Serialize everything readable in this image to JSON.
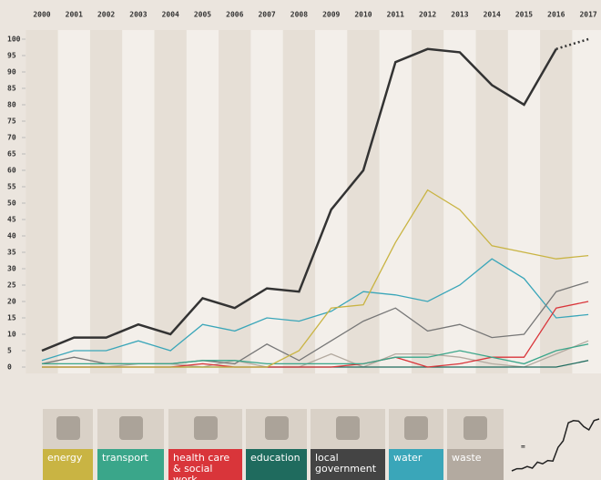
{
  "chart_data": {
    "type": "line",
    "categories": [
      "2000",
      "2001",
      "2002",
      "2003",
      "2004",
      "2005",
      "2006",
      "2007",
      "2008",
      "2009",
      "2010",
      "2011",
      "2012",
      "2013",
      "2014",
      "2015",
      "2016",
      "2017"
    ],
    "ylim": [
      0,
      100
    ],
    "yticks": [
      0,
      5,
      10,
      15,
      20,
      25,
      30,
      35,
      40,
      45,
      50,
      55,
      60,
      65,
      70,
      75,
      80,
      85,
      90,
      95,
      100
    ],
    "last_segment_dotted": true,
    "legend_equals": "=",
    "series": [
      {
        "color": "#333333",
        "values": [
          5,
          9,
          9,
          13,
          10,
          21,
          18,
          24,
          23,
          48,
          60,
          93,
          97,
          96,
          86,
          80,
          97,
          100
        ]
      },
      {
        "name": "energy",
        "color": "#c9b443",
        "values": [
          0,
          0,
          0,
          0,
          0,
          0,
          0,
          0,
          5,
          18,
          19,
          38,
          54,
          48,
          37,
          35,
          33,
          34
        ]
      },
      {
        "name": "transport",
        "color": "#3aa68a",
        "values": [
          1,
          1,
          1,
          1,
          1,
          2,
          2,
          1,
          1,
          1,
          1,
          3,
          3,
          5,
          3,
          1,
          5,
          7
        ]
      },
      {
        "name": "health care & social work",
        "color": "#d9353a",
        "values": [
          0,
          0,
          0,
          0,
          0,
          1,
          0,
          0,
          0,
          0,
          1,
          3,
          0,
          1,
          3,
          3,
          18,
          20
        ]
      },
      {
        "name": "education",
        "color": "#1f6b5e",
        "values": [
          0,
          0,
          0,
          0,
          0,
          0,
          0,
          0,
          0,
          0,
          0,
          0,
          0,
          0,
          0,
          0,
          0,
          2
        ]
      },
      {
        "name": "local government",
        "color": "#777777",
        "values": [
          1,
          3,
          1,
          1,
          1,
          2,
          1,
          7,
          2,
          8,
          14,
          18,
          11,
          13,
          9,
          10,
          23,
          26
        ]
      },
      {
        "name": "water",
        "color": "#3aa6b9",
        "values": [
          2,
          5,
          5,
          8,
          5,
          13,
          11,
          15,
          14,
          17,
          23,
          22,
          20,
          25,
          33,
          27,
          15,
          16
        ]
      },
      {
        "name": "waste",
        "color": "#b3aaa0",
        "values": [
          0,
          0,
          0,
          1,
          1,
          0,
          2,
          0,
          0,
          4,
          0,
          4,
          4,
          3,
          1,
          0,
          4,
          8
        ]
      }
    ]
  }
}
